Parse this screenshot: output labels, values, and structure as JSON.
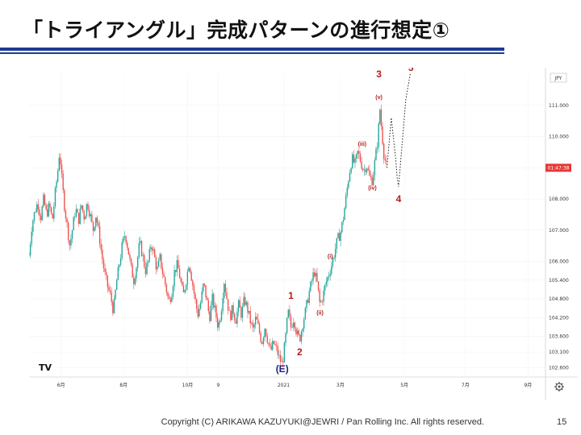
{
  "slide": {
    "title": "「トライアングル」完成パターンの進行想定①",
    "footer": "Copyright (C) ARIKAWA KAZUYUKI@JEWRI / Pan Rolling Inc. All rights reserved.",
    "page_number": "15"
  },
  "chart_data": {
    "type": "candlestick",
    "currency_tag": "JPY",
    "current_price_tag": "01:47:38",
    "logo": "TV",
    "settings_icon": "gear-icon",
    "x_ticks": [
      {
        "label": "6月",
        "t": 22
      },
      {
        "label": "8月",
        "t": 65
      },
      {
        "label": "10月",
        "t": 109
      },
      {
        "label": "9",
        "t": 130
      },
      {
        "label": "2021",
        "t": 175
      },
      {
        "label": "3月",
        "t": 214
      },
      {
        "label": "5月",
        "t": 258
      },
      {
        "label": "7月",
        "t": 300
      },
      {
        "label": "9月",
        "t": 343
      }
    ],
    "y_ticks": [
      "111.000",
      "110.000",
      "109.000",
      "108.000",
      "107.000",
      "106.000",
      "105.400",
      "104.800",
      "104.200",
      "103.600",
      "103.100",
      "102.600"
    ],
    "ylim": [
      102.3,
      112.0
    ],
    "price_path": [
      [
        0,
        106.2
      ],
      [
        2,
        107.2
      ],
      [
        4,
        107.6
      ],
      [
        6,
        107.9
      ],
      [
        8,
        107.4
      ],
      [
        10,
        108.0
      ],
      [
        12,
        107.5
      ],
      [
        14,
        107.8
      ],
      [
        16,
        107.3
      ],
      [
        18,
        108.2
      ],
      [
        20,
        109.0
      ],
      [
        21,
        109.6
      ],
      [
        22,
        108.9
      ],
      [
        24,
        107.9
      ],
      [
        26,
        107.2
      ],
      [
        28,
        106.5
      ],
      [
        30,
        107.1
      ],
      [
        32,
        107.7
      ],
      [
        34,
        107.3
      ],
      [
        36,
        107.8
      ],
      [
        38,
        107.4
      ],
      [
        40,
        107.9
      ],
      [
        42,
        107.5
      ],
      [
        44,
        107.0
      ],
      [
        46,
        107.5
      ],
      [
        48,
        106.9
      ],
      [
        50,
        106.2
      ],
      [
        52,
        105.6
      ],
      [
        54,
        105.2
      ],
      [
        56,
        104.9
      ],
      [
        58,
        104.4
      ],
      [
        60,
        105.3
      ],
      [
        62,
        105.9
      ],
      [
        64,
        106.5
      ],
      [
        66,
        106.9
      ],
      [
        68,
        106.4
      ],
      [
        70,
        105.8
      ],
      [
        72,
        105.4
      ],
      [
        74,
        105.9
      ],
      [
        76,
        106.6
      ],
      [
        78,
        106.2
      ],
      [
        80,
        105.7
      ],
      [
        82,
        106.0
      ],
      [
        84,
        106.6
      ],
      [
        86,
        106.2
      ],
      [
        88,
        105.7
      ],
      [
        90,
        106.1
      ],
      [
        92,
        105.6
      ],
      [
        94,
        105.2
      ],
      [
        96,
        104.7
      ],
      [
        98,
        105.0
      ],
      [
        100,
        105.7
      ],
      [
        102,
        105.9
      ],
      [
        104,
        105.4
      ],
      [
        106,
        104.9
      ],
      [
        108,
        105.4
      ],
      [
        110,
        106.0
      ],
      [
        112,
        105.4
      ],
      [
        114,
        104.8
      ],
      [
        116,
        104.3
      ],
      [
        118,
        104.7
      ],
      [
        120,
        105.3
      ],
      [
        122,
        104.8
      ],
      [
        124,
        104.2
      ],
      [
        126,
        104.8
      ],
      [
        128,
        104.4
      ],
      [
        130,
        103.9
      ],
      [
        132,
        104.4
      ],
      [
        134,
        105.4
      ],
      [
        136,
        104.8
      ],
      [
        138,
        104.2
      ],
      [
        140,
        104.5
      ],
      [
        142,
        104.1
      ],
      [
        144,
        104.6
      ],
      [
        146,
        104.3
      ],
      [
        148,
        104.8
      ],
      [
        150,
        104.5
      ],
      [
        152,
        104.1
      ],
      [
        154,
        103.8
      ],
      [
        156,
        104.2
      ],
      [
        158,
        103.8
      ],
      [
        160,
        103.4
      ],
      [
        162,
        103.9
      ],
      [
        164,
        103.5
      ],
      [
        166,
        103.1
      ],
      [
        168,
        103.4
      ],
      [
        170,
        103.2
      ],
      [
        172,
        102.9
      ],
      [
        174,
        102.7
      ],
      [
        176,
        103.4
      ],
      [
        178,
        104.4
      ],
      [
        180,
        103.9
      ],
      [
        182,
        104.2
      ],
      [
        184,
        103.7
      ],
      [
        186,
        103.5
      ],
      [
        188,
        104.0
      ],
      [
        190,
        104.4
      ],
      [
        192,
        104.9
      ],
      [
        194,
        105.3
      ],
      [
        196,
        105.7
      ],
      [
        198,
        105.3
      ],
      [
        200,
        104.6
      ],
      [
        202,
        104.9
      ],
      [
        204,
        105.3
      ],
      [
        206,
        105.6
      ],
      [
        208,
        105.9
      ],
      [
        210,
        106.3
      ],
      [
        212,
        106.7
      ],
      [
        214,
        106.9
      ],
      [
        216,
        107.4
      ],
      [
        218,
        108.1
      ],
      [
        220,
        108.8
      ],
      [
        222,
        109.3
      ],
      [
        224,
        109.1
      ],
      [
        226,
        109.5
      ],
      [
        228,
        109.2
      ],
      [
        230,
        108.9
      ],
      [
        232,
        109.1
      ],
      [
        234,
        108.7
      ],
      [
        236,
        108.6
      ],
      [
        238,
        109.3
      ],
      [
        240,
        110.0
      ],
      [
        241,
        111.0
      ],
      [
        242,
        110.4
      ],
      [
        244,
        109.4
      ],
      [
        246,
        109.0
      ]
    ],
    "projection": [
      [
        246,
        109.0
      ],
      [
        249,
        110.6
      ],
      [
        252,
        109.3
      ],
      [
        253,
        108.7
      ],
      [
        254,
        108.4
      ],
      [
        259,
        111.2
      ],
      [
        262,
        112.0
      ]
    ],
    "wave_labels": [
      {
        "text": "3",
        "t": 240.5,
        "p": 111.9,
        "size": "l"
      },
      {
        "text": "5",
        "t": 262.5,
        "p": 112.1,
        "size": "l"
      },
      {
        "text": "(v)",
        "t": 240.5,
        "p": 111.2,
        "size": "s"
      },
      {
        "text": "(iii)",
        "t": 229,
        "p": 109.7,
        "size": "s"
      },
      {
        "text": "(iv)",
        "t": 236,
        "p": 108.3,
        "size": "s"
      },
      {
        "text": "4",
        "t": 254,
        "p": 107.9,
        "size": "l"
      },
      {
        "text": "(i)",
        "t": 207,
        "p": 106.1,
        "size": "s"
      },
      {
        "text": "(ii)",
        "t": 200,
        "p": 104.3,
        "size": "s"
      },
      {
        "text": "1",
        "t": 180,
        "p": 104.8,
        "size": "l"
      },
      {
        "text": "2",
        "t": 186,
        "p": 103.0,
        "size": "l"
      },
      {
        "text": "(E)",
        "t": 174,
        "p": 102.45,
        "size": "e"
      }
    ]
  }
}
